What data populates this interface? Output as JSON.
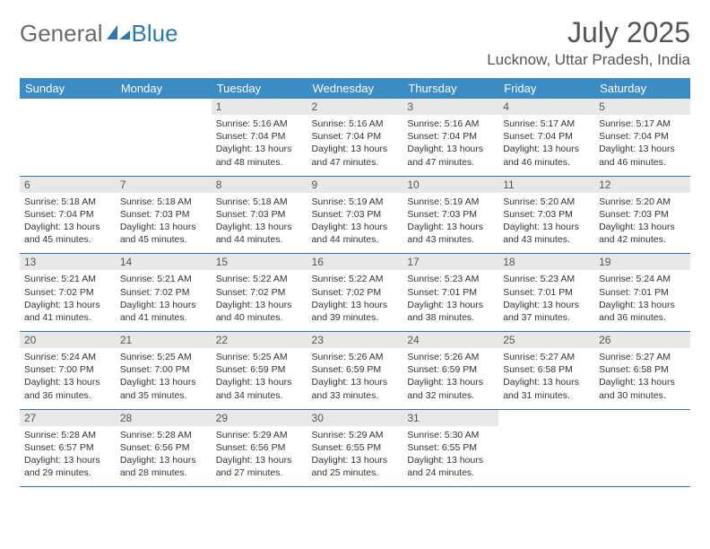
{
  "brand": {
    "general": "General",
    "blue": "Blue"
  },
  "header": {
    "month_title": "July 2025",
    "location": "Lucknow, Uttar Pradesh, India"
  },
  "colors": {
    "header_bg": "#3b8bc4",
    "rule": "#2a7ab0",
    "daynum_bg": "#e8e8e8",
    "text": "#333333"
  },
  "weekdays": [
    "Sunday",
    "Monday",
    "Tuesday",
    "Wednesday",
    "Thursday",
    "Friday",
    "Saturday"
  ],
  "weeks": [
    [
      {
        "n": "",
        "sr": "",
        "ss": "",
        "dl": ""
      },
      {
        "n": "",
        "sr": "",
        "ss": "",
        "dl": ""
      },
      {
        "n": "1",
        "sr": "5:16 AM",
        "ss": "7:04 PM",
        "dl": "13 hours and 48 minutes."
      },
      {
        "n": "2",
        "sr": "5:16 AM",
        "ss": "7:04 PM",
        "dl": "13 hours and 47 minutes."
      },
      {
        "n": "3",
        "sr": "5:16 AM",
        "ss": "7:04 PM",
        "dl": "13 hours and 47 minutes."
      },
      {
        "n": "4",
        "sr": "5:17 AM",
        "ss": "7:04 PM",
        "dl": "13 hours and 46 minutes."
      },
      {
        "n": "5",
        "sr": "5:17 AM",
        "ss": "7:04 PM",
        "dl": "13 hours and 46 minutes."
      }
    ],
    [
      {
        "n": "6",
        "sr": "5:18 AM",
        "ss": "7:04 PM",
        "dl": "13 hours and 45 minutes."
      },
      {
        "n": "7",
        "sr": "5:18 AM",
        "ss": "7:03 PM",
        "dl": "13 hours and 45 minutes."
      },
      {
        "n": "8",
        "sr": "5:18 AM",
        "ss": "7:03 PM",
        "dl": "13 hours and 44 minutes."
      },
      {
        "n": "9",
        "sr": "5:19 AM",
        "ss": "7:03 PM",
        "dl": "13 hours and 44 minutes."
      },
      {
        "n": "10",
        "sr": "5:19 AM",
        "ss": "7:03 PM",
        "dl": "13 hours and 43 minutes."
      },
      {
        "n": "11",
        "sr": "5:20 AM",
        "ss": "7:03 PM",
        "dl": "13 hours and 43 minutes."
      },
      {
        "n": "12",
        "sr": "5:20 AM",
        "ss": "7:03 PM",
        "dl": "13 hours and 42 minutes."
      }
    ],
    [
      {
        "n": "13",
        "sr": "5:21 AM",
        "ss": "7:02 PM",
        "dl": "13 hours and 41 minutes."
      },
      {
        "n": "14",
        "sr": "5:21 AM",
        "ss": "7:02 PM",
        "dl": "13 hours and 41 minutes."
      },
      {
        "n": "15",
        "sr": "5:22 AM",
        "ss": "7:02 PM",
        "dl": "13 hours and 40 minutes."
      },
      {
        "n": "16",
        "sr": "5:22 AM",
        "ss": "7:02 PM",
        "dl": "13 hours and 39 minutes."
      },
      {
        "n": "17",
        "sr": "5:23 AM",
        "ss": "7:01 PM",
        "dl": "13 hours and 38 minutes."
      },
      {
        "n": "18",
        "sr": "5:23 AM",
        "ss": "7:01 PM",
        "dl": "13 hours and 37 minutes."
      },
      {
        "n": "19",
        "sr": "5:24 AM",
        "ss": "7:01 PM",
        "dl": "13 hours and 36 minutes."
      }
    ],
    [
      {
        "n": "20",
        "sr": "5:24 AM",
        "ss": "7:00 PM",
        "dl": "13 hours and 36 minutes."
      },
      {
        "n": "21",
        "sr": "5:25 AM",
        "ss": "7:00 PM",
        "dl": "13 hours and 35 minutes."
      },
      {
        "n": "22",
        "sr": "5:25 AM",
        "ss": "6:59 PM",
        "dl": "13 hours and 34 minutes."
      },
      {
        "n": "23",
        "sr": "5:26 AM",
        "ss": "6:59 PM",
        "dl": "13 hours and 33 minutes."
      },
      {
        "n": "24",
        "sr": "5:26 AM",
        "ss": "6:59 PM",
        "dl": "13 hours and 32 minutes."
      },
      {
        "n": "25",
        "sr": "5:27 AM",
        "ss": "6:58 PM",
        "dl": "13 hours and 31 minutes."
      },
      {
        "n": "26",
        "sr": "5:27 AM",
        "ss": "6:58 PM",
        "dl": "13 hours and 30 minutes."
      }
    ],
    [
      {
        "n": "27",
        "sr": "5:28 AM",
        "ss": "6:57 PM",
        "dl": "13 hours and 29 minutes."
      },
      {
        "n": "28",
        "sr": "5:28 AM",
        "ss": "6:56 PM",
        "dl": "13 hours and 28 minutes."
      },
      {
        "n": "29",
        "sr": "5:29 AM",
        "ss": "6:56 PM",
        "dl": "13 hours and 27 minutes."
      },
      {
        "n": "30",
        "sr": "5:29 AM",
        "ss": "6:55 PM",
        "dl": "13 hours and 25 minutes."
      },
      {
        "n": "31",
        "sr": "5:30 AM",
        "ss": "6:55 PM",
        "dl": "13 hours and 24 minutes."
      },
      {
        "n": "",
        "sr": "",
        "ss": "",
        "dl": ""
      },
      {
        "n": "",
        "sr": "",
        "ss": "",
        "dl": ""
      }
    ]
  ],
  "labels": {
    "sunrise": "Sunrise:",
    "sunset": "Sunset:",
    "daylight": "Daylight:"
  }
}
